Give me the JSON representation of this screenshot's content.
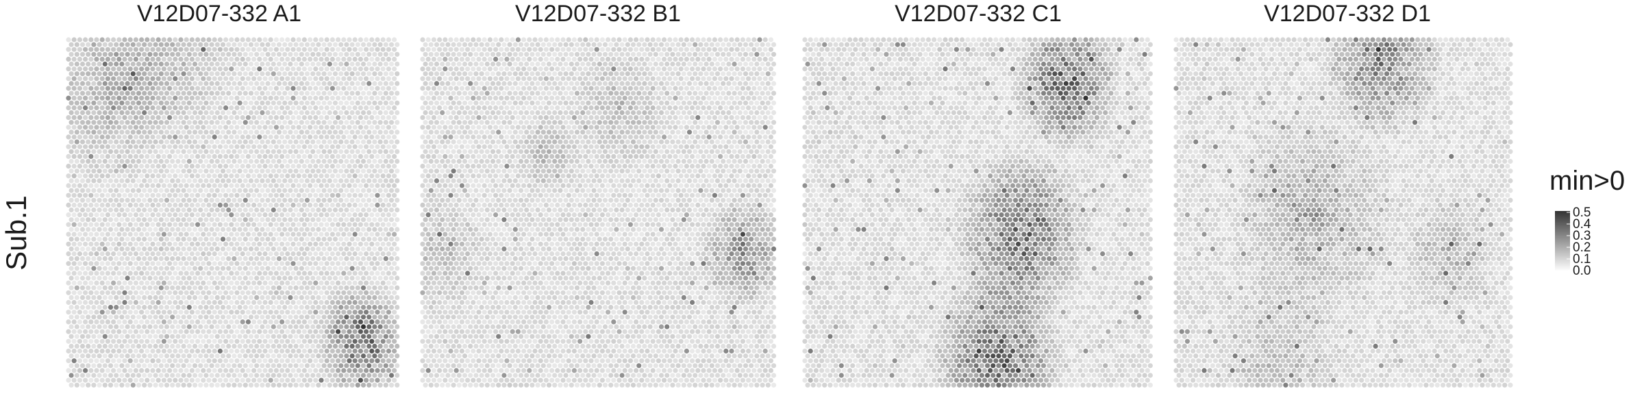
{
  "chart_data": {
    "type": "heatmap",
    "row_label": "Sub.1",
    "panels": [
      {
        "title": "V12D07-332  A1",
        "hotspots": [
          {
            "x": 0.88,
            "y": 0.85,
            "r": 0.14,
            "w": 0.75
          },
          {
            "x": 0.12,
            "y": 0.15,
            "r": 0.2,
            "w": 0.3
          },
          {
            "x": 0.3,
            "y": 0.05,
            "r": 0.22,
            "w": 0.2
          }
        ]
      },
      {
        "title": "V12D07-332  B1",
        "hotspots": [
          {
            "x": 0.9,
            "y": 0.6,
            "r": 0.13,
            "w": 0.5
          },
          {
            "x": 0.35,
            "y": 0.32,
            "r": 0.1,
            "w": 0.25
          },
          {
            "x": 0.55,
            "y": 0.2,
            "r": 0.15,
            "w": 0.2
          },
          {
            "x": 0.05,
            "y": 0.6,
            "r": 0.15,
            "w": 0.2
          }
        ]
      },
      {
        "title": "V12D07-332  C1",
        "hotspots": [
          {
            "x": 0.62,
            "y": 0.55,
            "r": 0.2,
            "w": 0.7
          },
          {
            "x": 0.75,
            "y": 0.12,
            "r": 0.16,
            "w": 0.75
          },
          {
            "x": 0.55,
            "y": 0.9,
            "r": 0.2,
            "w": 0.7
          }
        ]
      },
      {
        "title": "V12D07-332  D1",
        "hotspots": [
          {
            "x": 0.6,
            "y": 0.06,
            "r": 0.18,
            "w": 0.55
          },
          {
            "x": 0.4,
            "y": 0.5,
            "r": 0.25,
            "w": 0.3
          },
          {
            "x": 0.8,
            "y": 0.6,
            "r": 0.15,
            "w": 0.25
          },
          {
            "x": 0.3,
            "y": 0.9,
            "r": 0.2,
            "w": 0.2
          }
        ]
      }
    ],
    "legend": {
      "title": "min>0",
      "ticks": [
        "0.0",
        "0.1",
        "0.2",
        "0.3",
        "0.4",
        "0.5"
      ],
      "range": [
        0,
        0.5
      ]
    },
    "colors": {
      "low": "#f2f2f2",
      "high": "#333333"
    }
  }
}
